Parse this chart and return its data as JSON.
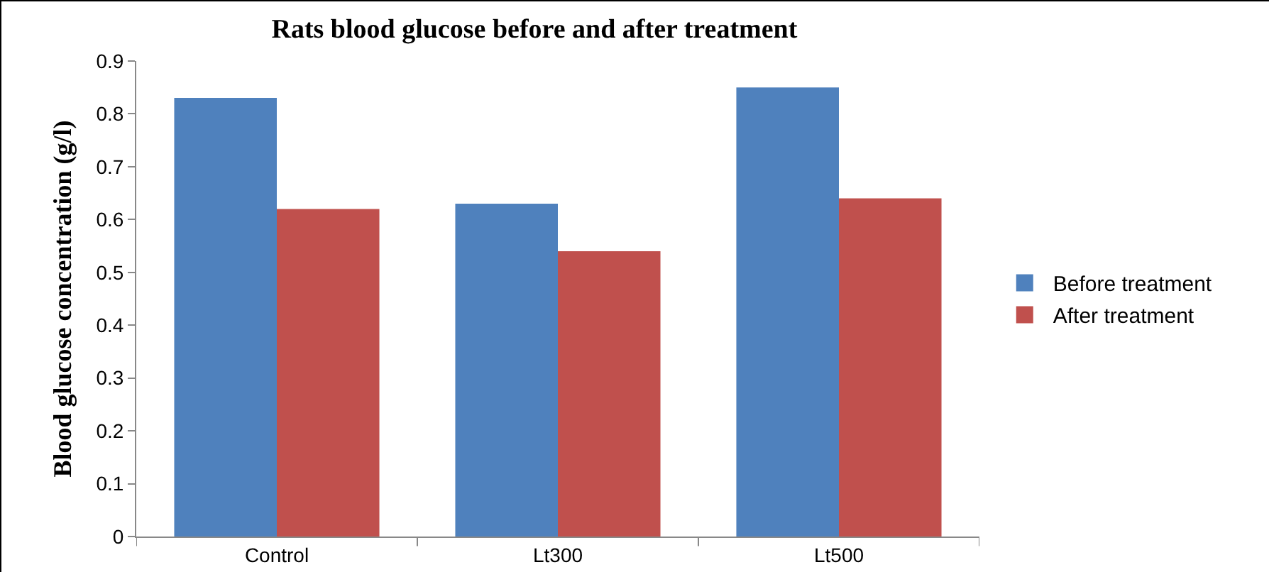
{
  "chart_data": {
    "type": "bar",
    "title": "Rats blood glucose before and after treatment",
    "ylabel": "Blood glucose concentration (g/l)",
    "categories": [
      "Control",
      "Lt300",
      "Lt500"
    ],
    "series": [
      {
        "name": "Before treatment",
        "color": "#4f81bd",
        "values": [
          0.83,
          0.63,
          0.85
        ]
      },
      {
        "name": "After treatment",
        "color": "#c0504d",
        "values": [
          0.62,
          0.54,
          0.64
        ]
      }
    ],
    "ylim": [
      0,
      0.9
    ],
    "yticks": [
      0,
      0.1,
      0.2,
      0.3,
      0.4,
      0.5,
      0.6,
      0.7,
      0.8,
      0.9
    ],
    "grid": false,
    "legend": "right"
  }
}
